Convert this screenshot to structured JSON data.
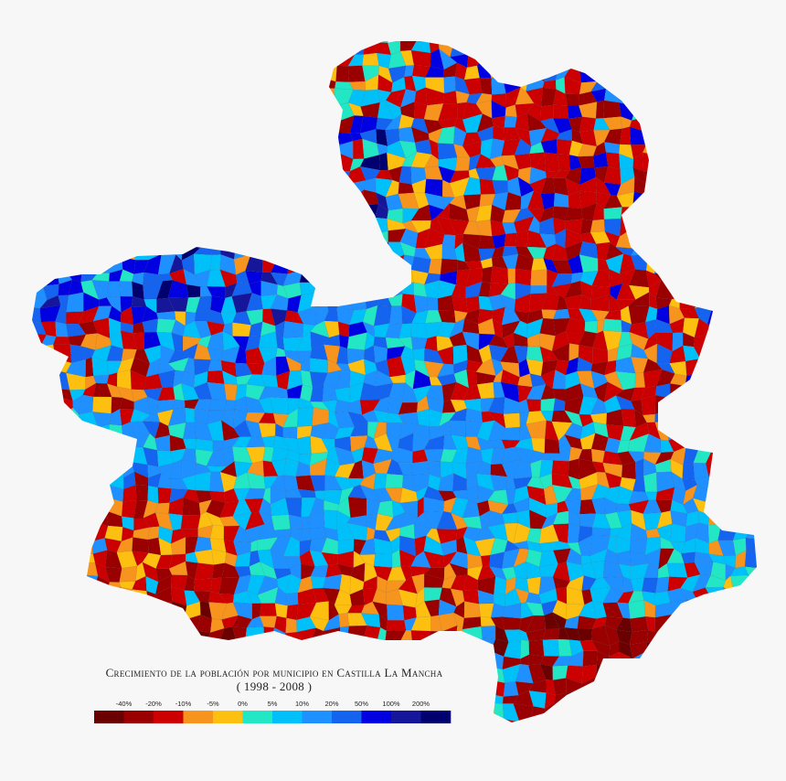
{
  "title": "Crecimiento de la población por municipio en Castilla La Mancha",
  "subtitle": "( 1998 - 2008 )",
  "legend": {
    "labels": [
      "-40%",
      "-20%",
      "-10%",
      "-5%",
      "0%",
      "5%",
      "10%",
      "20%",
      "50%",
      "100%",
      "200%"
    ],
    "colors": [
      "#6a0000",
      "#9a0000",
      "#cc0000",
      "#f7941d",
      "#fdc010",
      "#22e6c4",
      "#00c0fa",
      "#1e90ff",
      "#1464f0",
      "#0000e0",
      "#16169a",
      "#00006e"
    ]
  }
}
